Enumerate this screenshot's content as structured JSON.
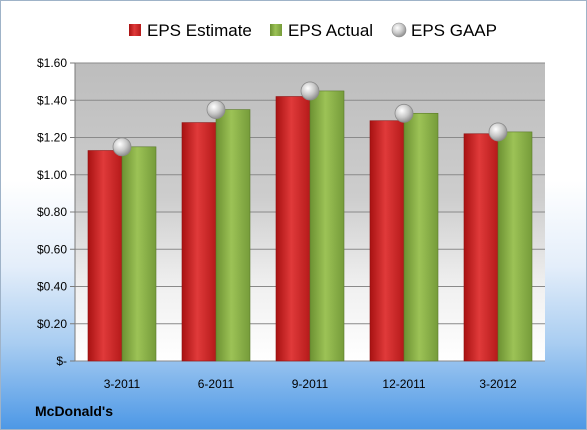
{
  "company": "McDonald's",
  "colors": {
    "estimate": "#d42a2a",
    "actual": "#8db34a",
    "gaap": "#c4c4c4"
  },
  "chart_data": {
    "type": "bar",
    "categories": [
      "3-2011",
      "6-2011",
      "9-2011",
      "12-2011",
      "3-2012"
    ],
    "series": [
      {
        "name": "EPS Estimate",
        "type": "bar",
        "values": [
          1.13,
          1.28,
          1.42,
          1.29,
          1.22
        ]
      },
      {
        "name": "EPS Actual",
        "type": "bar",
        "values": [
          1.15,
          1.35,
          1.45,
          1.33,
          1.23
        ]
      },
      {
        "name": "EPS GAAP",
        "type": "scatter",
        "values": [
          1.15,
          1.35,
          1.45,
          1.33,
          1.23
        ]
      }
    ],
    "ylim": [
      0,
      1.6
    ],
    "yticks": [
      0,
      0.2,
      0.4,
      0.6,
      0.8,
      1.0,
      1.2,
      1.4,
      1.6
    ],
    "ytick_labels": [
      "$-",
      "$0.20",
      "$0.40",
      "$0.60",
      "$0.80",
      "$1.00",
      "$1.20",
      "$1.40",
      "$1.60"
    ],
    "legend_position": "top",
    "grid": true
  }
}
